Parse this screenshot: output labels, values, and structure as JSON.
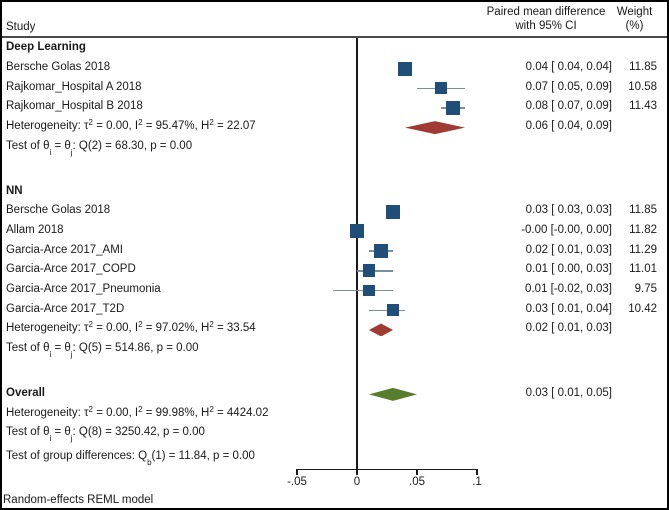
{
  "header": {
    "study": "Study",
    "effect_line1": "Paired mean difference",
    "effect_line2": "with 95% CI",
    "weight_line1": "Weight",
    "weight_line2": "(%)"
  },
  "footer": {
    "note": "Random-effects REML model"
  },
  "axis": {
    "tick_values": [
      -0.05,
      0,
      0.05,
      0.1
    ],
    "tick_labels": [
      "-.05",
      "0",
      ".05",
      ".1"
    ]
  },
  "colors": {
    "square": "#1f4e79",
    "ci_line": "#7f8c99",
    "diamond_subgroup": "#9f3b33",
    "diamond_overall": "#567d2b",
    "axis": "#1a1a1a",
    "header_rule": "#4a4a4a",
    "text": "#1a1a1a"
  },
  "chart_data": {
    "type": "forest",
    "model": "Random-effects REML model",
    "effect_measure": "Paired mean difference with 95% CI",
    "xlim": [
      -0.05,
      0.1
    ],
    "x_ticks": [
      -0.05,
      0,
      0.05,
      0.1
    ],
    "rows": [
      {
        "type": "group",
        "label": "Deep Learning"
      },
      {
        "type": "study",
        "label": "Bersche Golas 2018",
        "est": 0.04,
        "lo": 0.04,
        "hi": 0.04,
        "effect": "0.04 [ 0.04, 0.04]",
        "weight": 11.85
      },
      {
        "type": "study",
        "label": "Rajkomar_Hospital A 2018",
        "est": 0.07,
        "lo": 0.05,
        "hi": 0.09,
        "effect": "0.07 [ 0.05, 0.09]",
        "weight": 10.58
      },
      {
        "type": "study",
        "label": "Rajkomar_Hospital B 2018",
        "est": 0.08,
        "lo": 0.07,
        "hi": 0.09,
        "effect": "0.08 [ 0.07, 0.09]",
        "weight": 11.43
      },
      {
        "type": "summary",
        "label": "Heterogeneity: τ^{2} = 0.00, I^{2} = 95.47%, H^{2} = 22.07",
        "est": 0.06,
        "lo": 0.04,
        "hi": 0.09,
        "effect": "0.06 [ 0.04, 0.09]"
      },
      {
        "type": "text",
        "label": "Test of θ_{i} = θ_{j}: Q(2) = 68.30, p = 0.00"
      },
      {
        "type": "spacer"
      },
      {
        "type": "group",
        "label": "NN"
      },
      {
        "type": "study",
        "label": "Bersche Golas 2018",
        "est": 0.03,
        "lo": 0.03,
        "hi": 0.03,
        "effect": "0.03 [ 0.03, 0.03]",
        "weight": 11.85
      },
      {
        "type": "study",
        "label": "Allam 2018",
        "est": -0.0,
        "lo": -0.0,
        "hi": 0.0,
        "effect": "-0.00 [-0.00, 0.00]",
        "weight": 11.82
      },
      {
        "type": "study",
        "label": "Garcia-Arce 2017_AMI",
        "est": 0.02,
        "lo": 0.01,
        "hi": 0.03,
        "effect": "0.02 [ 0.01, 0.03]",
        "weight": 11.29
      },
      {
        "type": "study",
        "label": "Garcia-Arce 2017_COPD",
        "est": 0.01,
        "lo": 0.0,
        "hi": 0.03,
        "effect": "0.01 [ 0.00, 0.03]",
        "weight": 11.01
      },
      {
        "type": "study",
        "label": "Garcia-Arce 2017_Pneumonia",
        "est": 0.01,
        "lo": -0.02,
        "hi": 0.03,
        "effect": "0.01 [-0.02, 0.03]",
        "weight": 9.75
      },
      {
        "type": "study",
        "label": "Garcia-Arce 2017_T2D",
        "est": 0.03,
        "lo": 0.01,
        "hi": 0.04,
        "effect": "0.03 [ 0.01, 0.04]",
        "weight": 10.42
      },
      {
        "type": "summary",
        "label": "Heterogeneity: τ^{2} = 0.00, I^{2} = 97.02%, H^{2} = 33.54",
        "est": 0.02,
        "lo": 0.01,
        "hi": 0.03,
        "effect": "0.02 [ 0.01, 0.03]"
      },
      {
        "type": "text",
        "label": "Test of θ_{i} = θ_{j}: Q(5) = 514.86, p = 0.00"
      },
      {
        "type": "spacer"
      },
      {
        "type": "overall",
        "label": "Overall",
        "est": 0.03,
        "lo": 0.01,
        "hi": 0.05,
        "effect": "0.03 [ 0.01, 0.05]"
      },
      {
        "type": "text",
        "label": "Heterogeneity: τ^{2} = 0.00, I^{2} = 99.98%, H^{2} = 4424.02"
      },
      {
        "type": "text",
        "label": "Test of θ_{i} = θ_{j}: Q(8) = 3250.42, p = 0.00"
      },
      {
        "type": "group_test",
        "label": "Test of group differences: Q_{b}(1) = 11.84, p = 0.00"
      }
    ]
  }
}
